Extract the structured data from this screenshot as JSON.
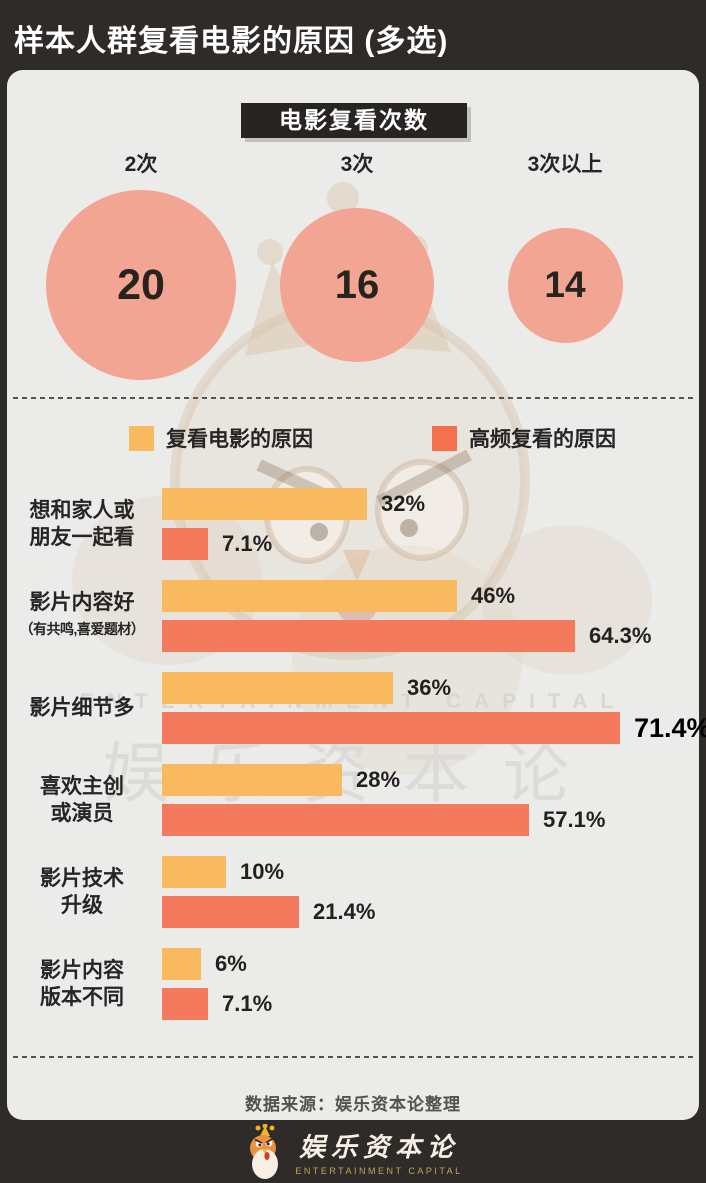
{
  "header": {
    "title": "样本人群复看电影的原因 (多选)"
  },
  "bubble_section": {
    "badge_label": "电影复看次数",
    "bubbles": [
      {
        "label": "2次",
        "value": "20",
        "diameter": 190
      },
      {
        "label": "3次",
        "value": "16",
        "diameter": 154
      },
      {
        "label": "3次以上",
        "value": "14",
        "diameter": 115
      }
    ]
  },
  "legend": [
    {
      "label": "复看电影的原因",
      "color": "#f9b95f"
    },
    {
      "label": "高频复看的原因",
      "color": "#f4714e"
    }
  ],
  "chart_data": {
    "type": "bar",
    "orientation": "horizontal",
    "unit": "percent",
    "xlim": [
      0,
      100
    ],
    "categories": [
      "想和家人或朋友一起看",
      "影片内容好（有共鸣,喜爱题材）",
      "影片细节多",
      "喜欢主创或演员",
      "影片技术升级",
      "影片内容版本不同"
    ],
    "category_lines": [
      [
        "想和家人或",
        "朋友一起看"
      ],
      [
        "影片内容好",
        "（有共鸣,喜爱题材）"
      ],
      [
        "影片细节多"
      ],
      [
        "喜欢主创",
        "或演员"
      ],
      [
        "影片技术",
        "升级"
      ],
      [
        "影片内容",
        "版本不同"
      ]
    ],
    "series": [
      {
        "name": "复看电影的原因",
        "color": "#f9b95f",
        "values": [
          32,
          46,
          36,
          28,
          10,
          6
        ]
      },
      {
        "name": "高频复看的原因",
        "color": "#f47a5e",
        "values": [
          7.1,
          64.3,
          71.4,
          57.1,
          21.4,
          7.1
        ]
      }
    ],
    "value_labels": [
      [
        "32%",
        "7.1%"
      ],
      [
        "46%",
        "64.3%"
      ],
      [
        "36%",
        "71.4%"
      ],
      [
        "28%",
        "57.1%"
      ],
      [
        "10%",
        "21.4%"
      ],
      [
        "6%",
        "7.1%"
      ]
    ],
    "emphasis": [
      [
        false,
        false
      ],
      [
        false,
        false
      ],
      [
        false,
        true
      ],
      [
        false,
        false
      ],
      [
        false,
        false
      ],
      [
        false,
        false
      ]
    ]
  },
  "watermark": {
    "line_en": "ENTERTAINMENT CAPITAL",
    "line_cn": "娱乐资本论"
  },
  "source": {
    "text": "数据来源：娱乐资本论整理"
  },
  "footer": {
    "brand_cn": "娱乐资本论",
    "brand_en": "ENTERTAINMENT CAPITAL"
  },
  "colors": {
    "background_dark": "#2e2b29",
    "panel": "#ebebe9",
    "badge": "#282422",
    "bubble": "#f2a592",
    "bar_orange": "#f9b95f",
    "bar_red": "#f47a5e",
    "text_dark": "#262424",
    "watermark_gray": "#dbd9d6",
    "footer_gold": "#c9a25a"
  }
}
